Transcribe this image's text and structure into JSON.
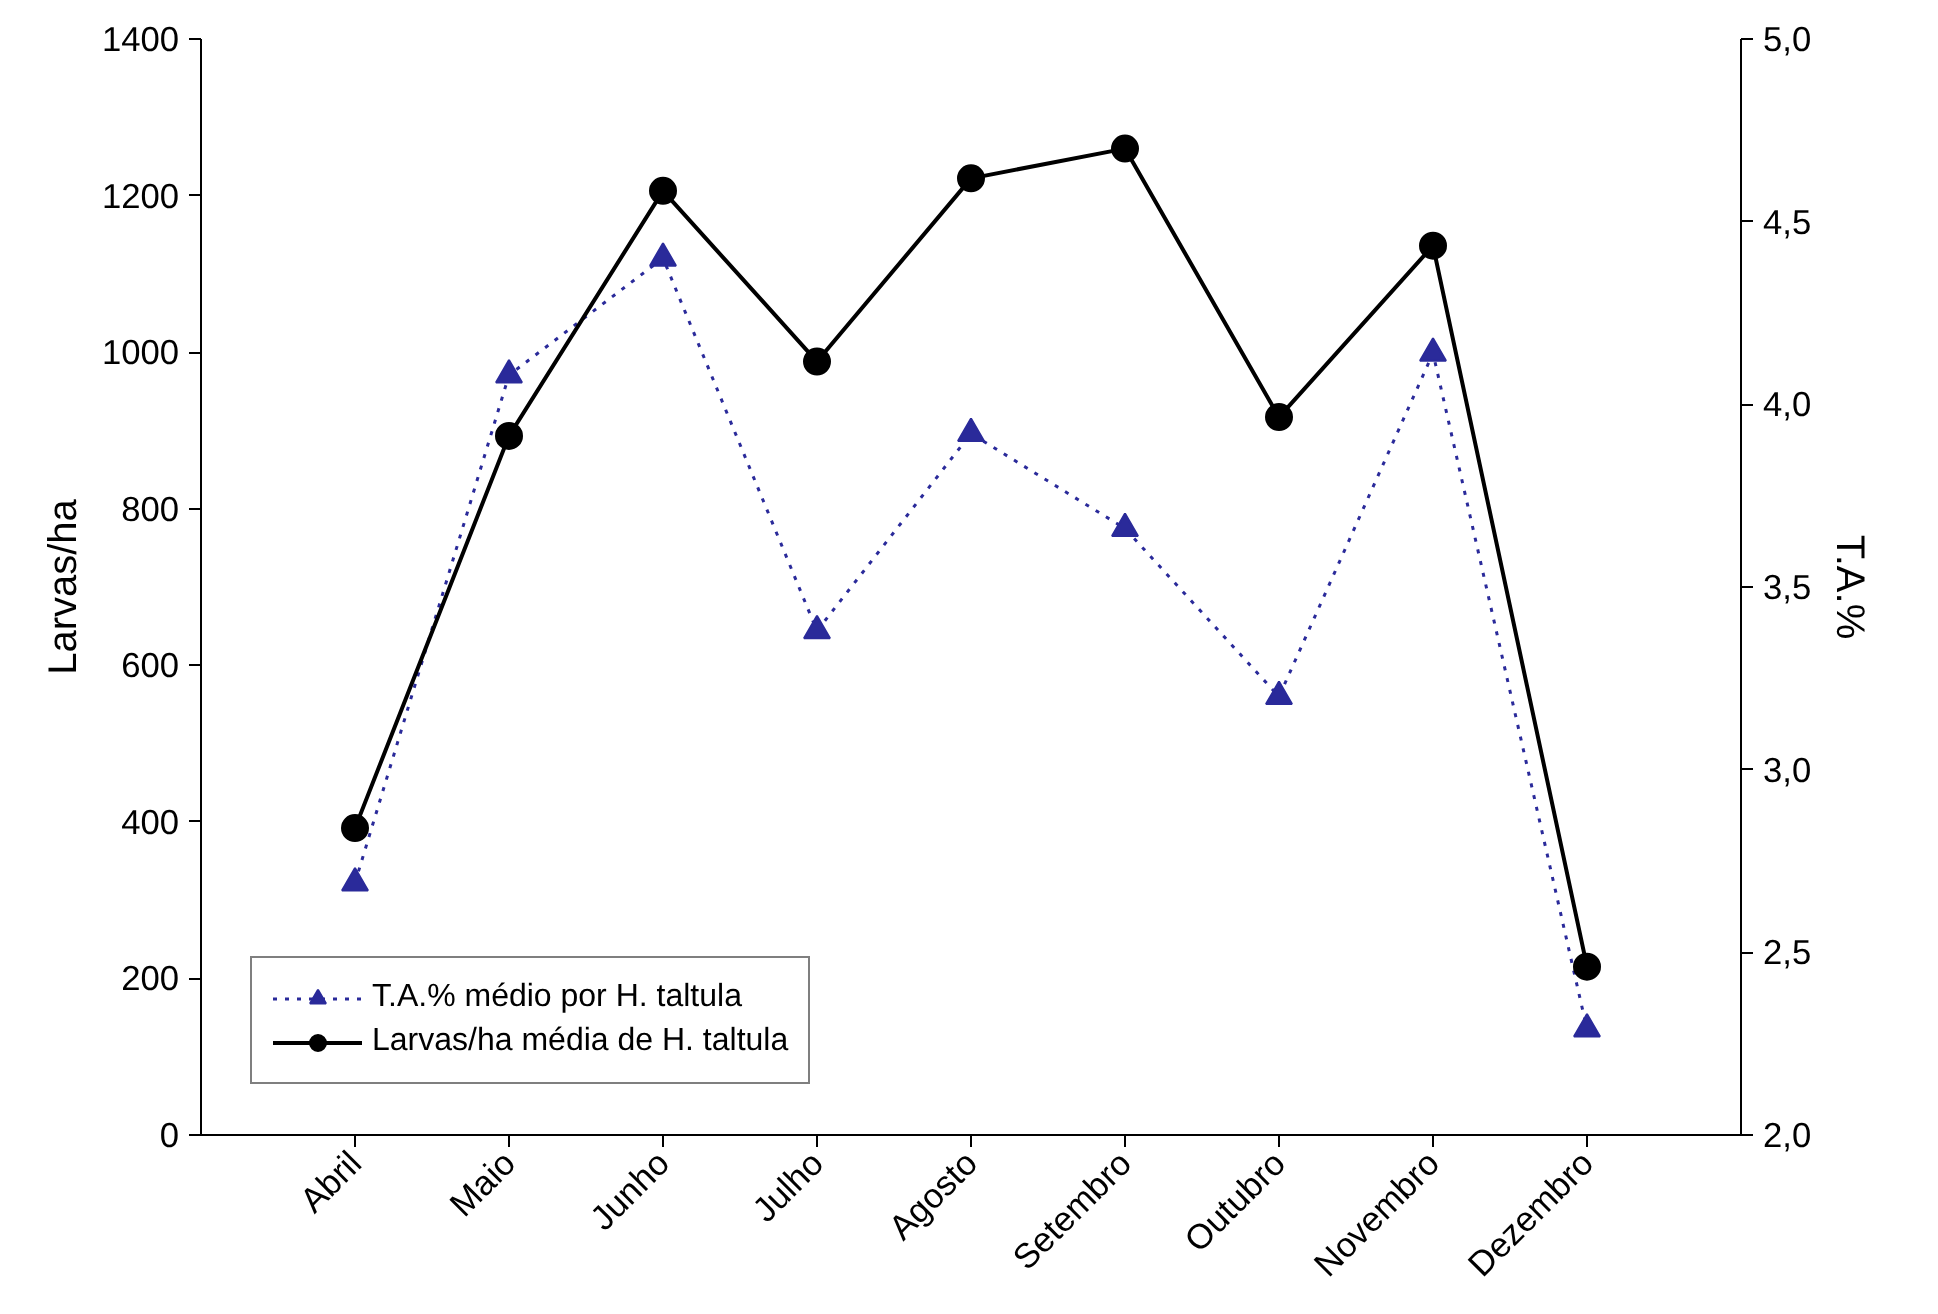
{
  "chart_data": {
    "type": "line",
    "categories": [
      "Abril",
      "Maio",
      "Junho",
      "Julho",
      "Agosto",
      "Setembro",
      "Outubro",
      "Novembro",
      "Dezembro"
    ],
    "series": [
      {
        "name": "T.A.% médio por H. taltula",
        "color": "#2a2a9a",
        "axis": "y2",
        "marker": "triangle",
        "line_style": "dotted",
        "values": [
          2.69,
          4.08,
          4.4,
          3.38,
          3.92,
          3.66,
          3.2,
          4.14,
          2.29
        ]
      },
      {
        "name": "Larvas/ha média de H. taltula",
        "color": "#000000",
        "marker": "circle",
        "line_style": "solid",
        "values": [
          392,
          893,
          1206,
          988,
          1222,
          1260,
          917,
          1136,
          215
        ]
      }
    ],
    "ylabel": "Larvas/ha",
    "y2label": "T.A.%",
    "ylim": [
      0,
      1400
    ],
    "yticks": [
      0,
      200,
      400,
      600,
      800,
      1000,
      1200,
      1400
    ],
    "y2lim": [
      2.0,
      5.0
    ],
    "y2ticks": [
      {
        "value": 2.0,
        "label": "2,0"
      },
      {
        "value": 2.5,
        "label": "2,5"
      },
      {
        "value": 3.0,
        "label": "3,0"
      },
      {
        "value": 3.5,
        "label": "3,5"
      },
      {
        "value": 4.0,
        "label": "4,0"
      },
      {
        "value": 4.5,
        "label": "4,5"
      },
      {
        "value": 5.0,
        "label": "5,0"
      }
    ],
    "legend": "bottom left",
    "grid": false
  }
}
